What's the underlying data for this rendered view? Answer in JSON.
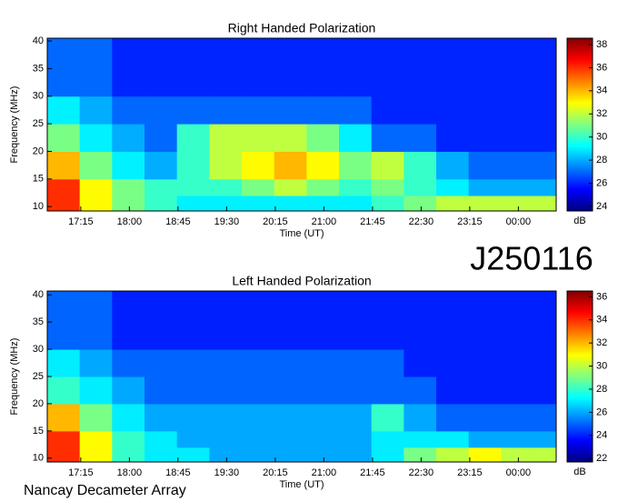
{
  "page": {
    "label": "J250116",
    "credit": "Nancay Decameter Array"
  },
  "chart_data": [
    {
      "type": "heatmap",
      "title": "Right Handed Polarization",
      "x_label": "Time (UT)",
      "y_label": "Frequency (MHz)",
      "colorbar_label": "dB",
      "xlim": [
        1004,
        1475
      ],
      "ylim": [
        9.2,
        40.5
      ],
      "zlim": [
        23.6,
        38.55
      ],
      "xticks": [
        {
          "value": 1035,
          "label": "17:15"
        },
        {
          "value": 1080,
          "label": "18:00"
        },
        {
          "value": 1125,
          "label": "18:45"
        },
        {
          "value": 1170,
          "label": "19:30"
        },
        {
          "value": 1215,
          "label": "20:15"
        },
        {
          "value": 1260,
          "label": "21:00"
        },
        {
          "value": 1305,
          "label": "21:45"
        },
        {
          "value": 1350,
          "label": "22:30"
        },
        {
          "value": 1395,
          "label": "23:15"
        },
        {
          "value": 1440,
          "label": "00:00"
        }
      ],
      "yticks": [
        10,
        15,
        20,
        25,
        30,
        35,
        40
      ],
      "zticks": [
        24,
        26,
        28,
        30,
        32,
        34,
        36,
        38
      ],
      "xbins": [
        1004,
        1034,
        1064,
        1094,
        1124,
        1154,
        1184,
        1214,
        1244,
        1274,
        1304,
        1334,
        1364,
        1394,
        1424,
        1454,
        1475
      ],
      "ybins": [
        9.2,
        12,
        15,
        20,
        25,
        30,
        35,
        40.5
      ],
      "z": [
        [
          36,
          33,
          31,
          30,
          29,
          29,
          29,
          29,
          29,
          29,
          30,
          31,
          32,
          32,
          32,
          32
        ],
        [
          36,
          33,
          31,
          30,
          30,
          30,
          31,
          32,
          31,
          30,
          31,
          30,
          29,
          28,
          28,
          28
        ],
        [
          34,
          31,
          29,
          28,
          30,
          32,
          33,
          34,
          33,
          31,
          32,
          30,
          28,
          27,
          27,
          27
        ],
        [
          31,
          29,
          28,
          27,
          30,
          32,
          32,
          32,
          31,
          29,
          27,
          27,
          26,
          26,
          26,
          26
        ],
        [
          29,
          28,
          27,
          27,
          27,
          27,
          27,
          27,
          27,
          27,
          26,
          26,
          26,
          26,
          26,
          26
        ],
        [
          27,
          27,
          26,
          26,
          26,
          26,
          26,
          26,
          26,
          26,
          26,
          26,
          26,
          26,
          26,
          26
        ],
        [
          27,
          27,
          26,
          26,
          26,
          26,
          26,
          26,
          26,
          26,
          26,
          26,
          26,
          26,
          26,
          26
        ]
      ]
    },
    {
      "type": "heatmap",
      "title": "Left Handed Polarization",
      "x_label": "Time (UT)",
      "y_label": "Frequency (MHz)",
      "colorbar_label": "dB",
      "xlim": [
        1004,
        1475
      ],
      "ylim": [
        9.3,
        40.7
      ],
      "zlim": [
        21.7,
        36.5
      ],
      "xticks": [
        {
          "value": 1035,
          "label": "17:15"
        },
        {
          "value": 1080,
          "label": "18:00"
        },
        {
          "value": 1125,
          "label": "18:45"
        },
        {
          "value": 1170,
          "label": "19:30"
        },
        {
          "value": 1215,
          "label": "20:15"
        },
        {
          "value": 1260,
          "label": "21:00"
        },
        {
          "value": 1305,
          "label": "21:45"
        },
        {
          "value": 1350,
          "label": "22:30"
        },
        {
          "value": 1395,
          "label": "23:15"
        },
        {
          "value": 1440,
          "label": "00:00"
        }
      ],
      "yticks": [
        10,
        15,
        20,
        25,
        30,
        35,
        40
      ],
      "zticks": [
        22,
        24,
        26,
        28,
        30,
        32,
        34,
        36
      ],
      "xbins": [
        1004,
        1034,
        1064,
        1094,
        1124,
        1154,
        1184,
        1214,
        1244,
        1274,
        1304,
        1334,
        1364,
        1394,
        1424,
        1454,
        1475
      ],
      "ybins": [
        9.3,
        12,
        15,
        20,
        25,
        30,
        35,
        40.7
      ],
      "z": [
        [
          34,
          31,
          28,
          27,
          27,
          26,
          26,
          26,
          26,
          26,
          27,
          29,
          30,
          31,
          30,
          30
        ],
        [
          34,
          31,
          28,
          27,
          26,
          26,
          26,
          26,
          26,
          26,
          27,
          27,
          27,
          26,
          26,
          26
        ],
        [
          32,
          29,
          27,
          26,
          26,
          26,
          26,
          26,
          26,
          26,
          28,
          26,
          25,
          25,
          25,
          25
        ],
        [
          28,
          27,
          26,
          25,
          25,
          25,
          25,
          25,
          25,
          25,
          25,
          25,
          24,
          24,
          24,
          24
        ],
        [
          27,
          26,
          25,
          25,
          25,
          25,
          25,
          25,
          25,
          25,
          25,
          24,
          24,
          24,
          24,
          24
        ],
        [
          25,
          25,
          24,
          24,
          24,
          24,
          24,
          24,
          24,
          24,
          24,
          24,
          24,
          24,
          24,
          24
        ],
        [
          25,
          25,
          24,
          24,
          24,
          24,
          24,
          24,
          24,
          24,
          24,
          24,
          24,
          24,
          24,
          24
        ]
      ]
    }
  ]
}
